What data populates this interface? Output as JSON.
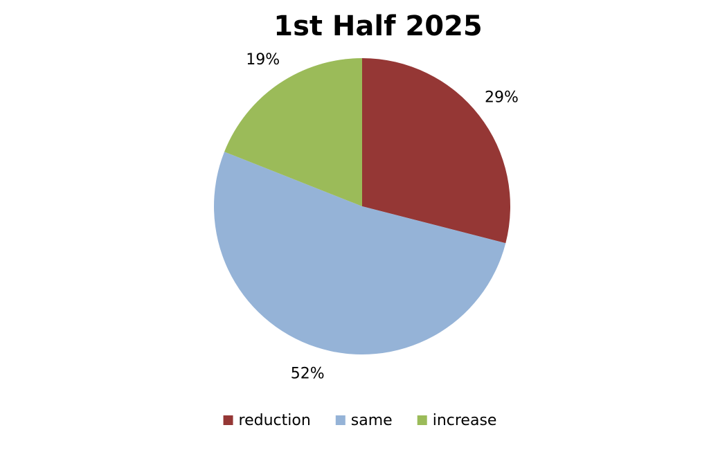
{
  "chart_data": {
    "type": "pie",
    "title": "1st Half 2025",
    "categories": [
      "reduction",
      "same",
      "increase"
    ],
    "values": [
      29,
      52,
      19
    ],
    "value_labels": [
      "29%",
      "52%",
      "19%"
    ],
    "colors": [
      "#953735",
      "#95b3d7",
      "#9bbb59"
    ],
    "legend": "bottom"
  }
}
